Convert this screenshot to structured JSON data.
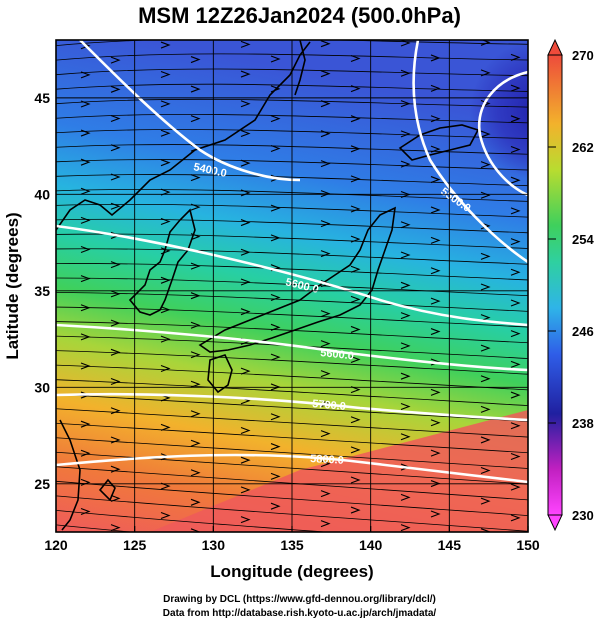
{
  "title": "MSM 12Z26Jan2024 (500.0hPa)",
  "axes": {
    "xlabel": "Longitude (degrees)",
    "ylabel": "Latitude  (degrees)",
    "xlim": [
      120,
      150
    ],
    "ylim": [
      22.5,
      48
    ],
    "xticks": [
      "120",
      "125",
      "130",
      "135",
      "140",
      "145",
      "150"
    ],
    "yticks": [
      "25",
      "30",
      "35",
      "40",
      "45"
    ]
  },
  "colorbar": {
    "min": 230,
    "max": 270,
    "ticks": [
      "230",
      "238",
      "246",
      "254",
      "262",
      "270"
    ]
  },
  "contour_labels": [
    "5400.0",
    "5500.0",
    "5600.0",
    "5600.0",
    "5700.0",
    "5800.0"
  ],
  "credits": {
    "line1": "Drawing by DCL (https://www.gfd-dennou.org/library/dcl/)",
    "line2": "Data from http://database.rish.kyoto-u.ac.jp/arch/jmadata/"
  },
  "colors": {
    "warm": "#ef5b5b",
    "cold": "#2e37c0",
    "contour": "#ffffff"
  }
}
